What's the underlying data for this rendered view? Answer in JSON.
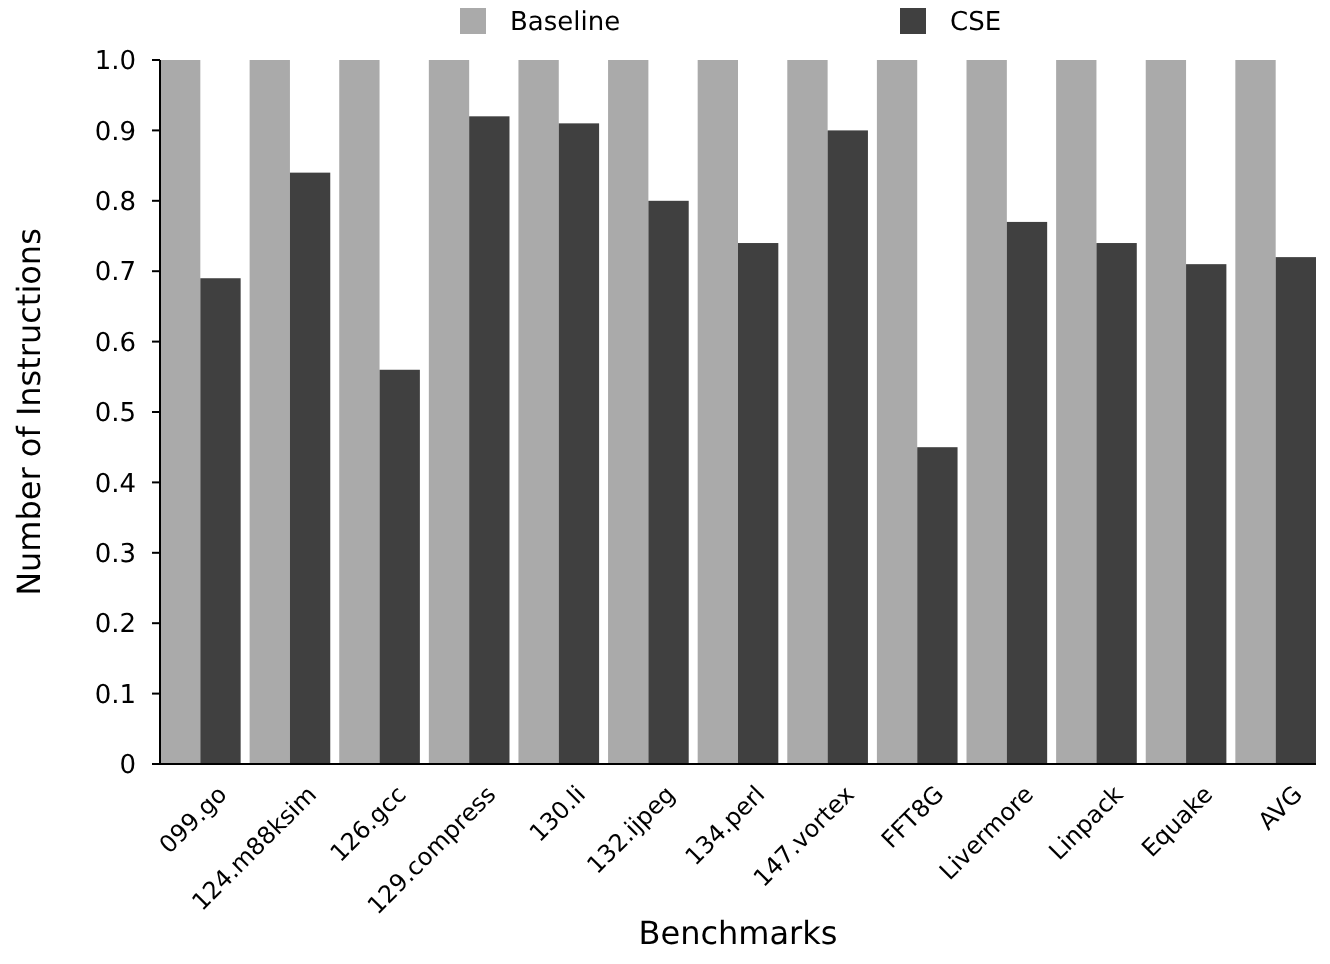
{
  "chart_data": {
    "type": "bar",
    "xlabel": "Benchmarks",
    "ylabel": "Number of Instructions",
    "categories": [
      "099.go",
      "124.m88ksim",
      "126.gcc",
      "129.compress",
      "130.li",
      "132.ijpeg",
      "134.perl",
      "147.vortex",
      "FFT8G",
      "Livermore",
      "Linpack",
      "Equake",
      "AVG"
    ],
    "series": [
      {
        "name": "Baseline",
        "color": "#aaaaaa",
        "values": [
          1,
          1,
          1,
          1,
          1,
          1,
          1,
          1,
          1,
          1,
          1,
          1,
          1
        ]
      },
      {
        "name": "CSE",
        "color": "#404040",
        "values": [
          0.69,
          0.84,
          0.56,
          0.92,
          0.91,
          0.8,
          0.74,
          0.9,
          0.45,
          0.77,
          0.74,
          0.71,
          0.72
        ]
      }
    ],
    "ylim": [
      0,
      1
    ],
    "yticks": [
      0,
      0.1,
      0.2,
      0.3,
      0.4,
      0.5,
      0.6,
      0.7,
      0.8,
      0.9,
      {
        "value": 1,
        "label": "1.0"
      }
    ],
    "grid": false,
    "legend": "top"
  }
}
